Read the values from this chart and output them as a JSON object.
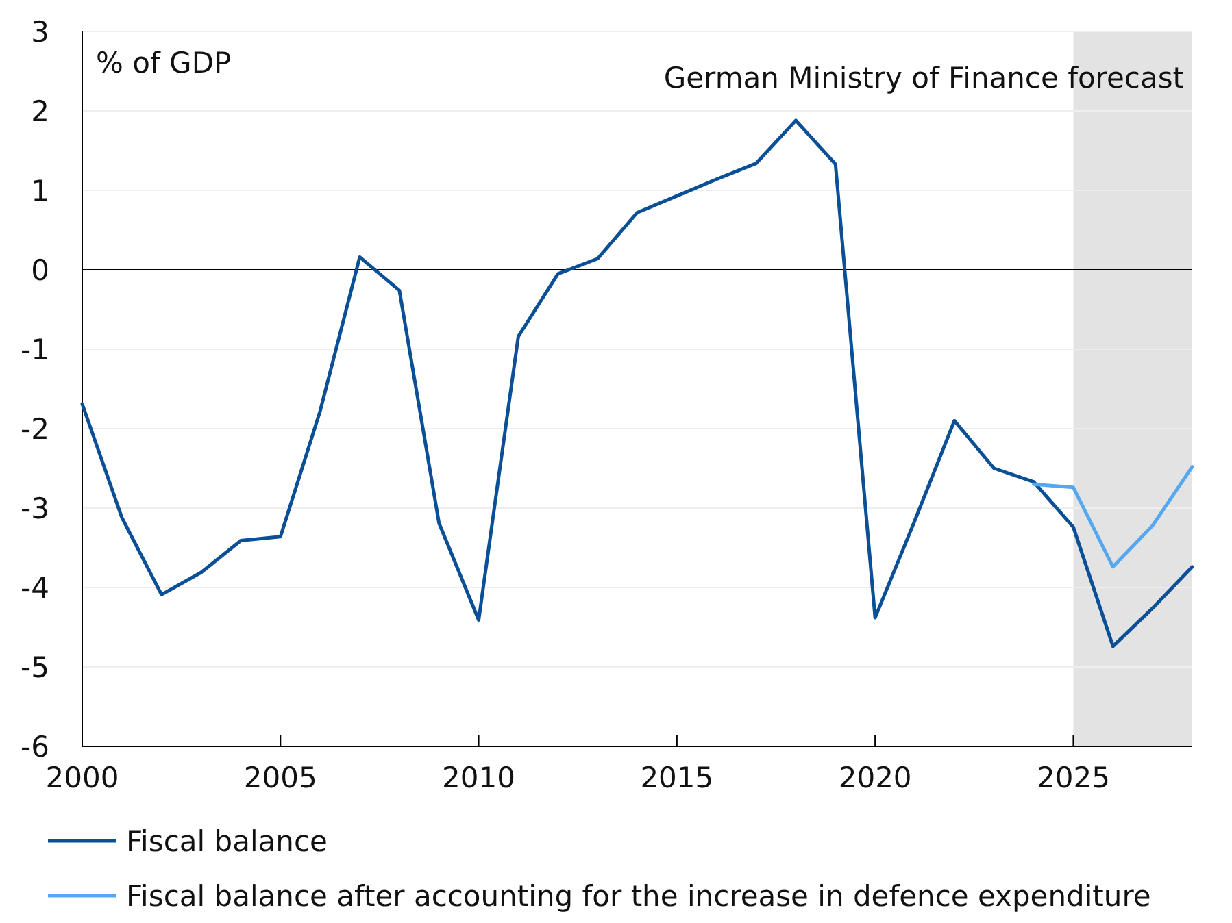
{
  "chart_data": {
    "type": "line",
    "ylabel": "% of GDP",
    "x": [
      2000,
      2001,
      2002,
      2003,
      2004,
      2005,
      2006,
      2007,
      2008,
      2009,
      2010,
      2011,
      2012,
      2013,
      2014,
      2015,
      2016,
      2017,
      2018,
      2019,
      2020,
      2021,
      2022,
      2023,
      2024,
      2025,
      2026,
      2027,
      2028
    ],
    "series": [
      {
        "name": "Fiscal balance",
        "color": "#0b4f96",
        "values": [
          -1.69,
          -3.12,
          -4.09,
          -3.81,
          -3.41,
          -3.36,
          -1.78,
          0.16,
          -0.26,
          -3.19,
          -4.41,
          -0.84,
          -0.05,
          0.14,
          0.72,
          0.93,
          1.14,
          1.34,
          1.88,
          1.33,
          -4.38,
          -3.16,
          -1.9,
          -2.5,
          -2.67,
          -3.24,
          -4.74,
          -4.26,
          -3.74
        ]
      },
      {
        "name": "Fiscal balance after accounting for the increase in defence expenditure",
        "color": "#55a8f0",
        "x": [
          2024,
          2025,
          2026,
          2027,
          2028
        ],
        "values": [
          -2.7,
          -2.74,
          -3.74,
          -3.22,
          -2.48
        ]
      }
    ],
    "xlim": [
      2000,
      2028
    ],
    "xticks": [
      2000,
      2005,
      2010,
      2015,
      2020,
      2025
    ],
    "ylim": [
      -6,
      3
    ],
    "yticks": [
      -6,
      -5,
      -4,
      -3,
      -2,
      -1,
      0,
      1,
      2,
      3
    ],
    "grid": "y",
    "legend": "bottom",
    "line_style": "solid",
    "marker": "none",
    "ref_lines": [
      {
        "axis": "y",
        "value": 0,
        "color": "#000000"
      }
    ],
    "bands": [
      {
        "axis": "x",
        "from": 2025,
        "to": 2028,
        "label": "German Ministry of Finance forecast",
        "color": "#e3e3e3"
      }
    ]
  }
}
